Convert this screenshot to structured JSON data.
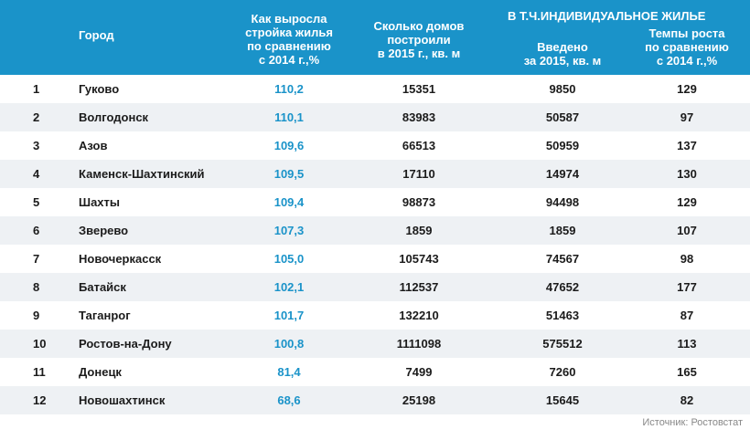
{
  "header": {
    "city": "Город",
    "growth": [
      "Как выросла",
      "стройка жилья",
      "по сравнению",
      "с 2014 г.,%"
    ],
    "built": [
      "Сколько домов",
      "построили",
      "в 2015 г., кв. м"
    ],
    "group": "В Т.Ч.ИНДИВИДУАЛЬНОЕ ЖИЛЬЕ",
    "indiv": [
      "Введено",
      "за 2015, кв. м"
    ],
    "rate": [
      "Темпы роста",
      "по сравнению",
      "с 2014 г.,%"
    ]
  },
  "rows": [
    {
      "num": "1",
      "city": "Гуково",
      "growth": "110,2",
      "built": "15351",
      "indiv": "9850",
      "rate": "129"
    },
    {
      "num": "2",
      "city": "Волгодонск",
      "growth": "110,1",
      "built": "83983",
      "indiv": "50587",
      "rate": "97"
    },
    {
      "num": "3",
      "city": "Азов",
      "growth": "109,6",
      "built": "66513",
      "indiv": "50959",
      "rate": "137"
    },
    {
      "num": "4",
      "city": "Каменск-Шахтинский",
      "growth": "109,5",
      "built": "17110",
      "indiv": "14974",
      "rate": "130"
    },
    {
      "num": "5",
      "city": "Шахты",
      "growth": "109,4",
      "built": "98873",
      "indiv": "94498",
      "rate": "129"
    },
    {
      "num": "6",
      "city": "Зверево",
      "growth": "107,3",
      "built": "1859",
      "indiv": "1859",
      "rate": "107"
    },
    {
      "num": "7",
      "city": "Новочеркасск",
      "growth": "105,0",
      "built": "105743",
      "indiv": "74567",
      "rate": "98"
    },
    {
      "num": "8",
      "city": "Батайск",
      "growth": "102,1",
      "built": "112537",
      "indiv": "47652",
      "rate": "177"
    },
    {
      "num": "9",
      "city": "Таганрог",
      "growth": "101,7",
      "built": "132210",
      "indiv": "51463",
      "rate": "87"
    },
    {
      "num": "10",
      "city": "Ростов-на-Дону",
      "growth": "100,8",
      "built": "1111098",
      "indiv": "575512",
      "rate": "113"
    },
    {
      "num": "11",
      "city": "Донецк",
      "growth": "81,4",
      "built": "7499",
      "indiv": "7260",
      "rate": "165"
    },
    {
      "num": "12",
      "city": "Новошахтинск",
      "growth": "68,6",
      "built": "25198",
      "indiv": "15645",
      "rate": "82"
    }
  ],
  "source": "Источник: Ростовстат",
  "colors": {
    "header_bg": "#1a93c9",
    "accent": "#1a93c9",
    "stripe": "#eef1f4"
  }
}
